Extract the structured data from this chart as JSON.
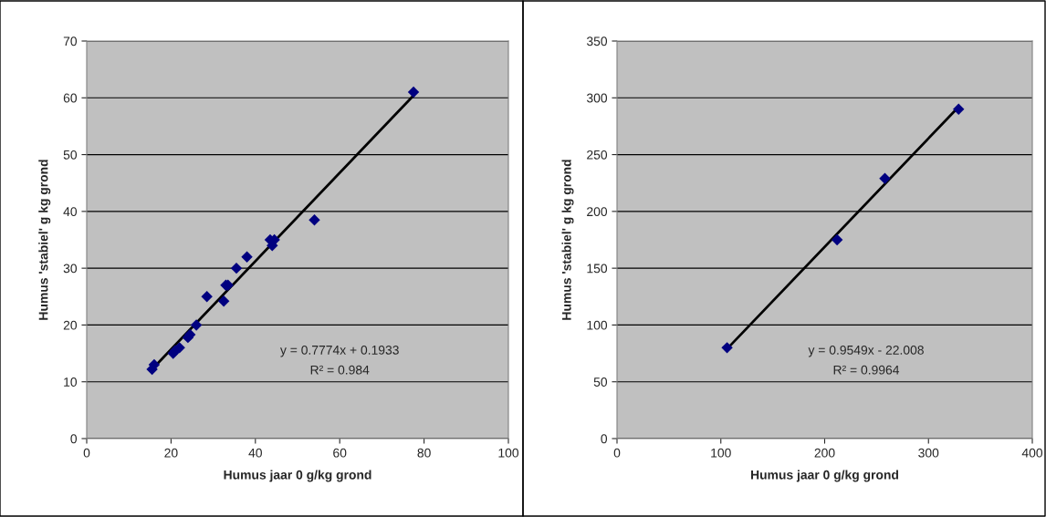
{
  "chart_data": [
    {
      "type": "scatter",
      "xlabel": "Humus jaar 0 g/kg grond",
      "ylabel": "Humus 'stabiel' g kg grond",
      "xlim": [
        0,
        100
      ],
      "xticks": [
        0,
        20,
        40,
        60,
        80,
        100
      ],
      "ylim": [
        0,
        70
      ],
      "yticks": [
        0,
        10,
        20,
        30,
        40,
        50,
        60,
        70
      ],
      "grid": "y",
      "annotations": [
        "y = 0.7774x + 0.1933",
        "R² = 0.984"
      ],
      "series": [
        {
          "marker": "diamond",
          "color": "#000080",
          "x": [
            15.5,
            16,
            20.5,
            21,
            22,
            24,
            24.5,
            26,
            28.5,
            32.5,
            33,
            33.5,
            35.5,
            38,
            43.5,
            44,
            44.5,
            54,
            77.5
          ],
          "values": [
            12.2,
            13,
            15,
            15.5,
            16,
            17.8,
            18.3,
            20,
            25,
            24.2,
            27,
            27,
            30,
            32,
            35,
            34,
            35,
            38.5,
            61
          ]
        },
        {
          "type": "line",
          "color": "#000000",
          "x": [
            15.5,
            77.5
          ],
          "values": [
            12.2,
            60.4
          ]
        }
      ]
    },
    {
      "type": "scatter",
      "xlabel": "Humus jaar 0 g/kg grond",
      "ylabel": "Humus 'stabiel' g kg grond",
      "xlim": [
        0,
        400
      ],
      "xticks": [
        0,
        100,
        200,
        300,
        400
      ],
      "ylim": [
        0,
        350
      ],
      "yticks": [
        0,
        50,
        100,
        150,
        200,
        250,
        300,
        350
      ],
      "grid": "y",
      "annotations": [
        "y = 0.9549x - 22.008",
        "R² = 0.9964"
      ],
      "series": [
        {
          "marker": "diamond",
          "color": "#000080",
          "x": [
            106,
            212,
            258,
            329
          ],
          "values": [
            80,
            175,
            229,
            290
          ]
        },
        {
          "type": "line",
          "color": "#000000",
          "x": [
            106,
            329
          ],
          "values": [
            79,
            292
          ]
        }
      ]
    }
  ]
}
